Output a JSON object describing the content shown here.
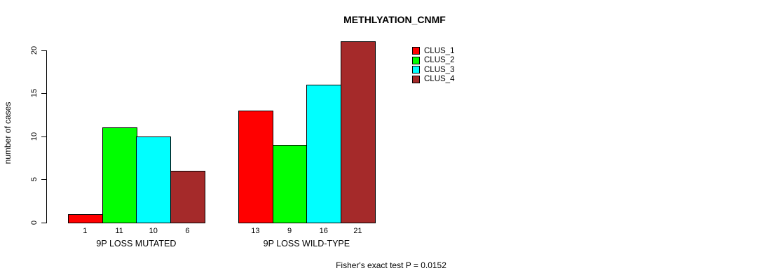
{
  "title": "METHLYATION_CNMF",
  "ylabel": "number of cases",
  "caption": "Fisher's exact test P = 0.0152",
  "chart_data": {
    "type": "bar",
    "title": "METHLYATION_CNMF",
    "ylabel": "number of cases",
    "xlabel": "",
    "categories": [
      "9P LOSS MUTATED",
      "9P LOSS WILD-TYPE"
    ],
    "series": [
      {
        "name": "CLUS_1",
        "color": "#FF0000",
        "values": [
          1,
          13
        ]
      },
      {
        "name": "CLUS_2",
        "color": "#00FF00",
        "values": [
          11,
          9
        ]
      },
      {
        "name": "CLUS_3",
        "color": "#00FFFF",
        "values": [
          10,
          16
        ]
      },
      {
        "name": "CLUS_4",
        "color": "#A52A2A",
        "values": [
          6,
          21
        ]
      }
    ],
    "bar_value_labels": [
      [
        1,
        11,
        10,
        6
      ],
      [
        13,
        9,
        16,
        21
      ]
    ],
    "yticks": [
      0,
      5,
      10,
      15,
      20
    ],
    "ylim": [
      0,
      20
    ],
    "grid": false,
    "legend_position": "top-right",
    "annotation": "Fisher's exact test P = 0.0152"
  }
}
